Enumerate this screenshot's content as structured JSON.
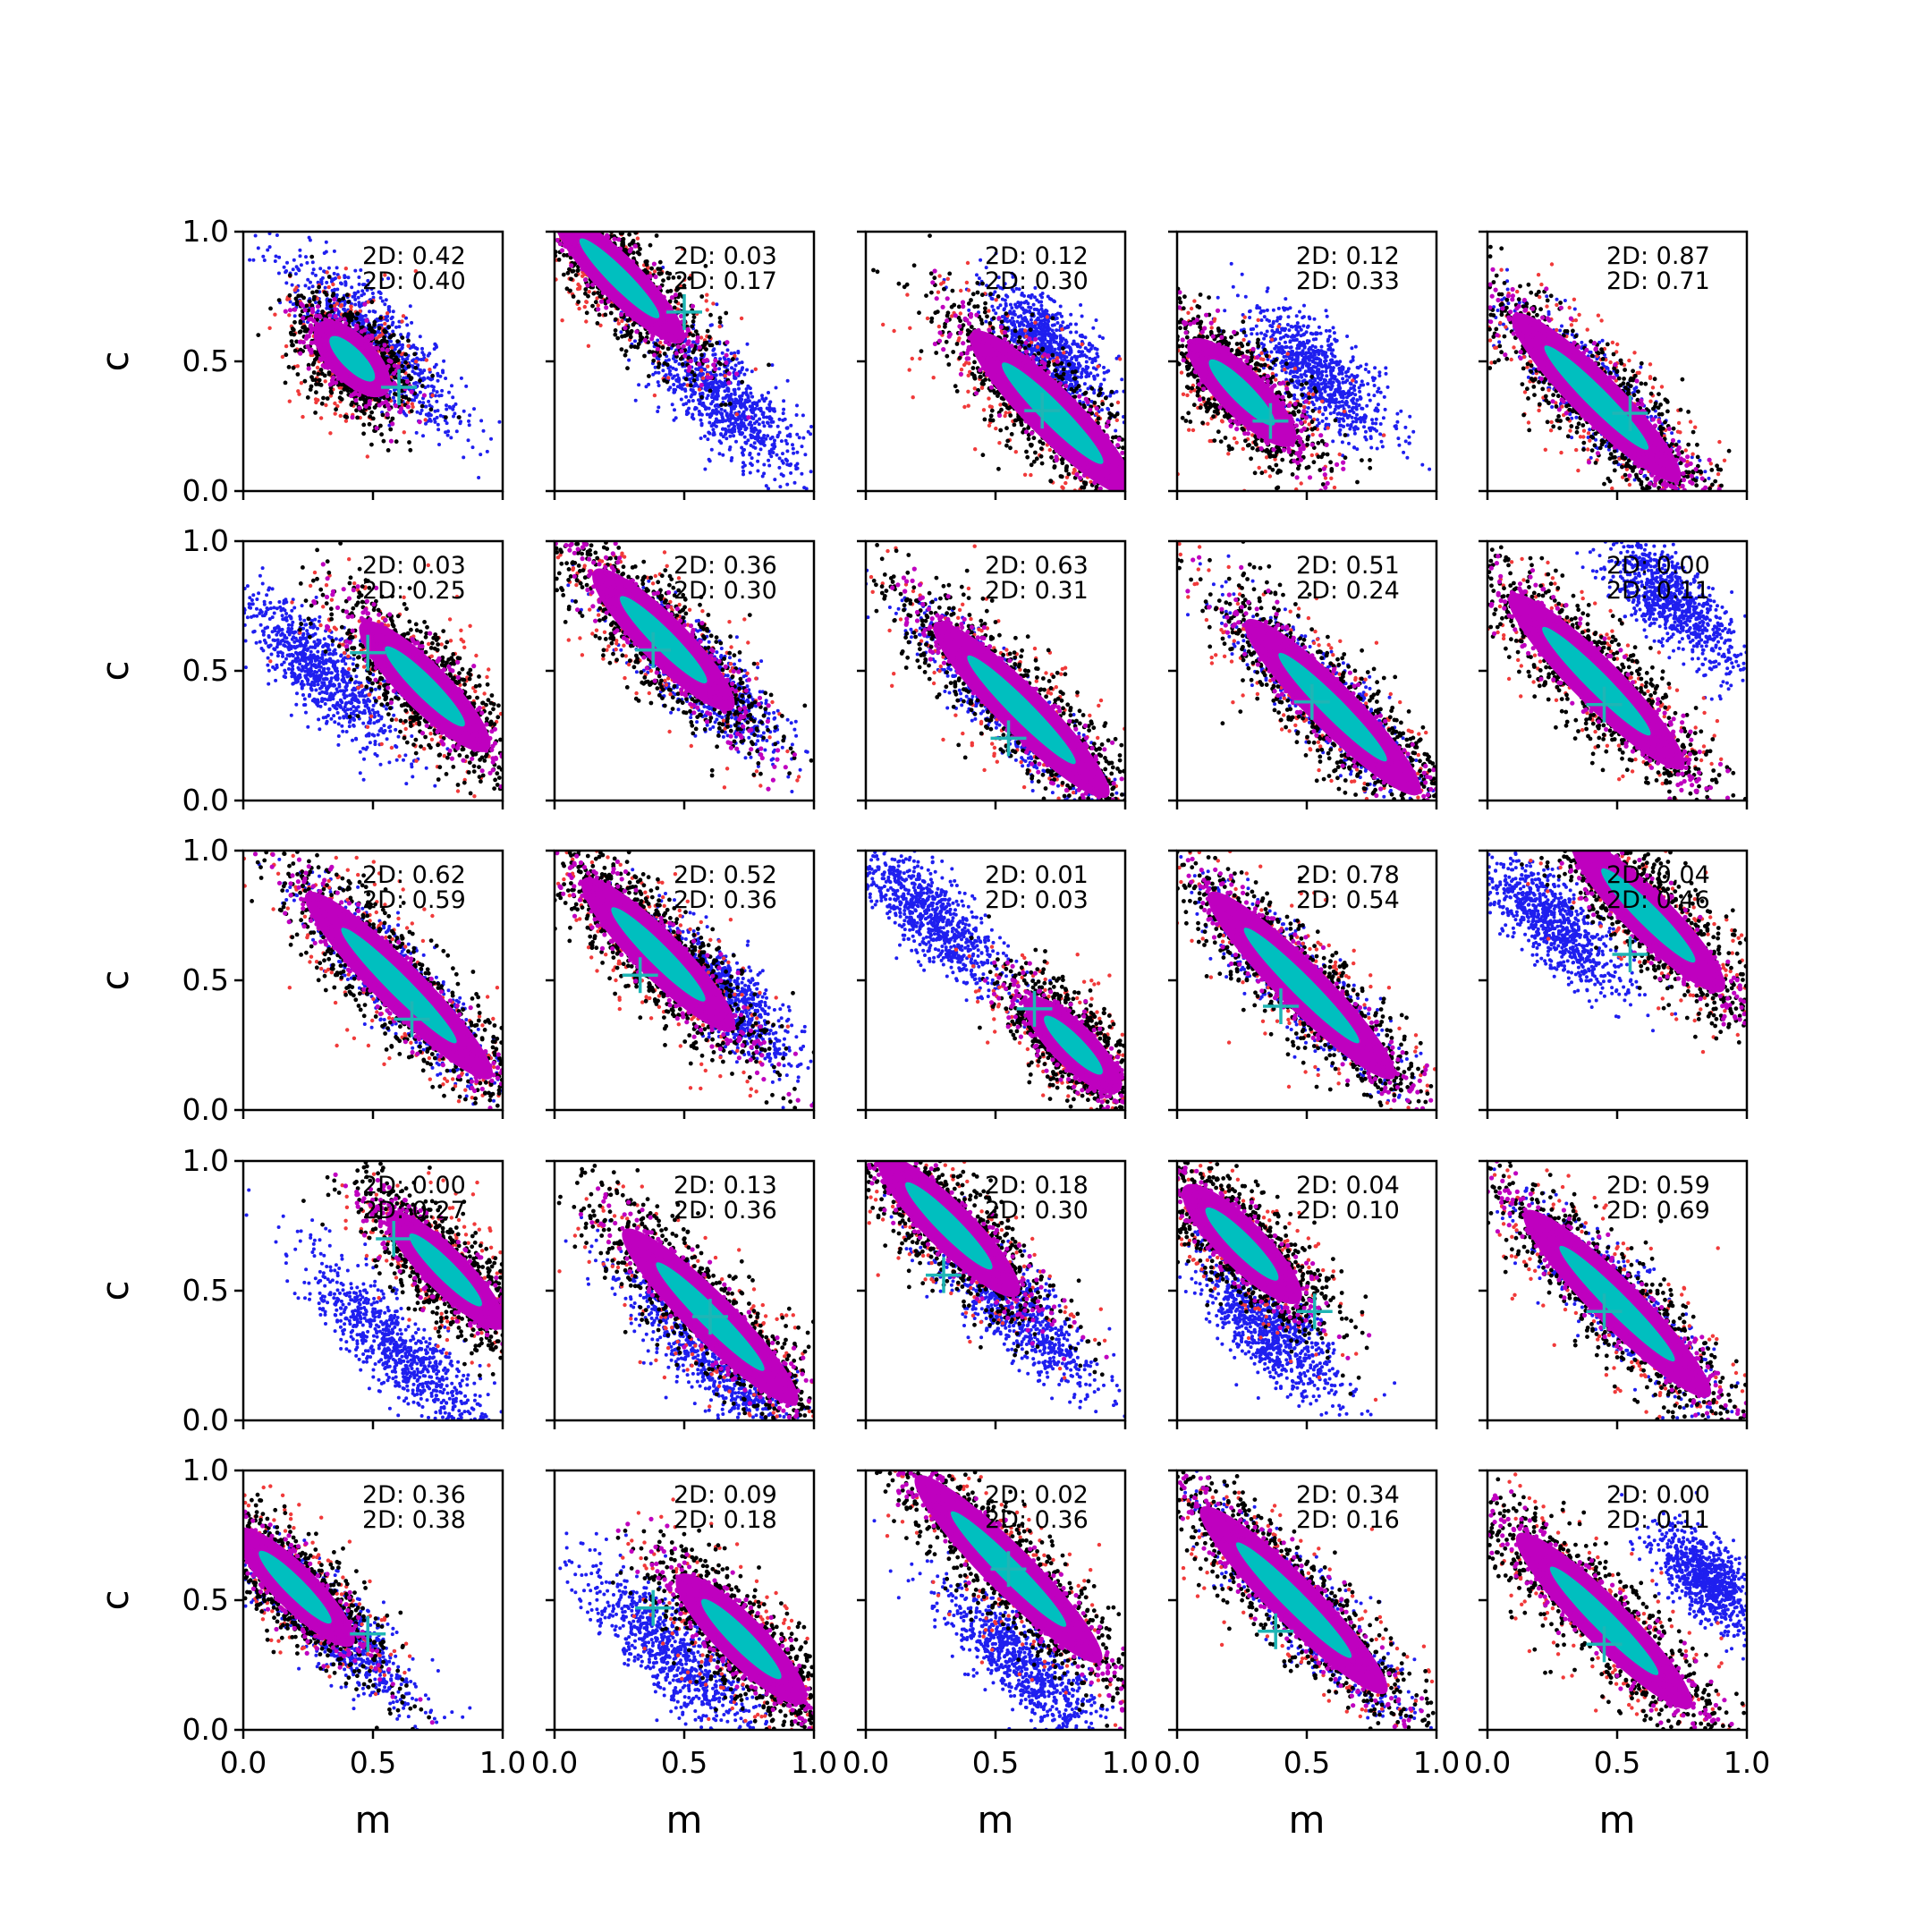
{
  "chart_data": {
    "type": "scatter",
    "layout": "5x5 grid of subplots",
    "shared_axes": {
      "xlabel": "m",
      "ylabel": "c",
      "xlim": [
        0.0,
        1.0
      ],
      "ylim": [
        0.0,
        1.0
      ],
      "xticks": [
        "0.0",
        "0.5",
        "1.0"
      ],
      "yticks": [
        "0.0",
        "0.5",
        "1.0"
      ]
    },
    "colors": {
      "red": "#f03a3a",
      "black": "#000000",
      "magenta": "#bf00bf",
      "cyan": "#00bfbf",
      "blue": "#1f1fef",
      "marker": "#1fb5b5"
    },
    "panels": [
      {
        "row": 0,
        "col": 0,
        "annot": [
          "2D: 0.42",
          "2D: 0.40"
        ],
        "main": {
          "m": 0.42,
          "c": 0.51,
          "s": 0.3,
          "w": 0.065
        },
        "blue": {
          "m": 0.5,
          "c": 0.58,
          "s": 0.55,
          "w": 0.07
        },
        "marker": {
          "m": 0.6,
          "c": 0.4
        }
      },
      {
        "row": 0,
        "col": 1,
        "annot": [
          "2D: 0.03",
          "2D: 0.17"
        ],
        "main": {
          "m": 0.25,
          "c": 0.82,
          "s": 0.55,
          "w": 0.06
        },
        "blue": {
          "m": 0.65,
          "c": 0.35,
          "s": 0.45,
          "w": 0.075
        },
        "marker": {
          "m": 0.5,
          "c": 0.69
        }
      },
      {
        "row": 0,
        "col": 2,
        "annot": [
          "2D: 0.12",
          "2D: 0.30"
        ],
        "main": {
          "m": 0.72,
          "c": 0.3,
          "s": 0.7,
          "w": 0.07
        },
        "blue": {
          "m": 0.7,
          "c": 0.55,
          "s": 0.35,
          "w": 0.07
        },
        "marker": {
          "m": 0.68,
          "c": 0.31
        }
      },
      {
        "row": 0,
        "col": 3,
        "annot": [
          "2D: 0.12",
          "2D: 0.33"
        ],
        "main": {
          "m": 0.25,
          "c": 0.38,
          "s": 0.45,
          "w": 0.065
        },
        "blue": {
          "m": 0.55,
          "c": 0.45,
          "s": 0.4,
          "w": 0.07
        },
        "marker": {
          "m": 0.36,
          "c": 0.27
        }
      },
      {
        "row": 0,
        "col": 4,
        "annot": [
          "2D: 0.87",
          "2D: 0.71"
        ],
        "main": {
          "m": 0.42,
          "c": 0.36,
          "s": 0.72,
          "w": 0.065
        },
        "blue": {
          "m": 0.42,
          "c": 0.36,
          "s": 0.5,
          "w": 0.06
        },
        "marker": {
          "m": 0.55,
          "c": 0.3
        }
      },
      {
        "row": 1,
        "col": 0,
        "annot": [
          "2D: 0.03",
          "2D: 0.25"
        ],
        "main": {
          "m": 0.7,
          "c": 0.44,
          "s": 0.55,
          "w": 0.065
        },
        "blue": {
          "m": 0.3,
          "c": 0.5,
          "s": 0.45,
          "w": 0.065
        },
        "marker": {
          "m": 0.48,
          "c": 0.57
        }
      },
      {
        "row": 1,
        "col": 1,
        "annot": [
          "2D: 0.36",
          "2D: 0.30"
        ],
        "main": {
          "m": 0.42,
          "c": 0.62,
          "s": 0.6,
          "w": 0.065
        },
        "blue": {
          "m": 0.55,
          "c": 0.5,
          "s": 0.5,
          "w": 0.065
        },
        "marker": {
          "m": 0.38,
          "c": 0.58
        }
      },
      {
        "row": 1,
        "col": 2,
        "annot": [
          "2D: 0.63",
          "2D: 0.31"
        ],
        "main": {
          "m": 0.6,
          "c": 0.35,
          "s": 0.75,
          "w": 0.065
        },
        "blue": {
          "m": 0.55,
          "c": 0.36,
          "s": 0.6,
          "w": 0.06
        },
        "marker": {
          "m": 0.55,
          "c": 0.24
        }
      },
      {
        "row": 1,
        "col": 3,
        "annot": [
          "2D: 0.51",
          "2D: 0.24"
        ],
        "main": {
          "m": 0.6,
          "c": 0.36,
          "s": 0.75,
          "w": 0.065
        },
        "blue": {
          "m": 0.6,
          "c": 0.36,
          "s": 0.6,
          "w": 0.06
        },
        "marker": {
          "m": 0.52,
          "c": 0.38
        }
      },
      {
        "row": 1,
        "col": 4,
        "annot": [
          "2D: 0.00",
          "2D: 0.11"
        ],
        "main": {
          "m": 0.42,
          "c": 0.46,
          "s": 0.75,
          "w": 0.065
        },
        "blue": {
          "m": 0.72,
          "c": 0.76,
          "s": 0.4,
          "w": 0.065
        },
        "marker": {
          "m": 0.45,
          "c": 0.37
        }
      },
      {
        "row": 2,
        "col": 0,
        "annot": [
          "2D: 0.62",
          "2D: 0.59"
        ],
        "main": {
          "m": 0.6,
          "c": 0.48,
          "s": 0.8,
          "w": 0.065
        },
        "blue": {
          "m": 0.6,
          "c": 0.48,
          "s": 0.55,
          "w": 0.06
        },
        "marker": {
          "m": 0.65,
          "c": 0.35
        }
      },
      {
        "row": 2,
        "col": 1,
        "annot": [
          "2D: 0.52",
          "2D: 0.36"
        ],
        "main": {
          "m": 0.4,
          "c": 0.6,
          "s": 0.65,
          "w": 0.065
        },
        "blue": {
          "m": 0.65,
          "c": 0.45,
          "s": 0.45,
          "w": 0.065
        },
        "marker": {
          "m": 0.33,
          "c": 0.52
        }
      },
      {
        "row": 2,
        "col": 2,
        "annot": [
          "2D: 0.01",
          "2D: 0.03"
        ],
        "main": {
          "m": 0.8,
          "c": 0.25,
          "s": 0.4,
          "w": 0.06
        },
        "blue": {
          "m": 0.25,
          "c": 0.75,
          "s": 0.45,
          "w": 0.065
        },
        "marker": {
          "m": 0.65,
          "c": 0.39
        }
      },
      {
        "row": 2,
        "col": 3,
        "annot": [
          "2D: 0.78",
          "2D: 0.54"
        ],
        "main": {
          "m": 0.48,
          "c": 0.48,
          "s": 0.8,
          "w": 0.065
        },
        "blue": {
          "m": 0.48,
          "c": 0.48,
          "s": 0.55,
          "w": 0.06
        },
        "marker": {
          "m": 0.4,
          "c": 0.4
        }
      },
      {
        "row": 2,
        "col": 4,
        "annot": [
          "2D: 0.04",
          "2D: 0.46"
        ],
        "main": {
          "m": 0.62,
          "c": 0.75,
          "s": 0.65,
          "w": 0.065
        },
        "blue": {
          "m": 0.25,
          "c": 0.72,
          "s": 0.45,
          "w": 0.065
        },
        "marker": {
          "m": 0.55,
          "c": 0.6
        }
      },
      {
        "row": 3,
        "col": 0,
        "annot": [
          "2D: 0.00",
          "2D: 0.27"
        ],
        "main": {
          "m": 0.78,
          "c": 0.58,
          "s": 0.5,
          "w": 0.06
        },
        "blue": {
          "m": 0.6,
          "c": 0.27,
          "s": 0.6,
          "w": 0.065
        },
        "marker": {
          "m": 0.58,
          "c": 0.7
        }
      },
      {
        "row": 3,
        "col": 1,
        "annot": [
          "2D: 0.13",
          "2D: 0.36"
        ],
        "main": {
          "m": 0.6,
          "c": 0.4,
          "s": 0.75,
          "w": 0.065
        },
        "blue": {
          "m": 0.6,
          "c": 0.25,
          "s": 0.6,
          "w": 0.065
        },
        "marker": {
          "m": 0.6,
          "c": 0.4
        }
      },
      {
        "row": 3,
        "col": 2,
        "annot": [
          "2D: 0.18",
          "2D: 0.30"
        ],
        "main": {
          "m": 0.32,
          "c": 0.75,
          "s": 0.6,
          "w": 0.065
        },
        "blue": {
          "m": 0.55,
          "c": 0.45,
          "s": 0.55,
          "w": 0.065
        },
        "marker": {
          "m": 0.3,
          "c": 0.56
        }
      },
      {
        "row": 3,
        "col": 3,
        "annot": [
          "2D: 0.04",
          "2D: 0.10"
        ],
        "main": {
          "m": 0.25,
          "c": 0.68,
          "s": 0.5,
          "w": 0.065
        },
        "blue": {
          "m": 0.35,
          "c": 0.35,
          "s": 0.45,
          "w": 0.065
        },
        "marker": {
          "m": 0.53,
          "c": 0.42
        }
      },
      {
        "row": 3,
        "col": 4,
        "annot": [
          "2D: 0.59",
          "2D: 0.69"
        ],
        "main": {
          "m": 0.5,
          "c": 0.45,
          "s": 0.8,
          "w": 0.065
        },
        "blue": {
          "m": 0.5,
          "c": 0.45,
          "s": 0.55,
          "w": 0.06
        },
        "marker": {
          "m": 0.45,
          "c": 0.42
        }
      },
      {
        "row": 4,
        "col": 0,
        "annot": [
          "2D: 0.36",
          "2D: 0.38"
        ],
        "main": {
          "m": 0.2,
          "c": 0.55,
          "s": 0.5,
          "w": 0.06
        },
        "blue": {
          "m": 0.35,
          "c": 0.4,
          "s": 0.5,
          "w": 0.065
        },
        "marker": {
          "m": 0.48,
          "c": 0.37
        }
      },
      {
        "row": 4,
        "col": 1,
        "annot": [
          "2D: 0.09",
          "2D: 0.18"
        ],
        "main": {
          "m": 0.72,
          "c": 0.35,
          "s": 0.55,
          "w": 0.065
        },
        "blue": {
          "m": 0.45,
          "c": 0.3,
          "s": 0.55,
          "w": 0.07
        },
        "marker": {
          "m": 0.38,
          "c": 0.47
        }
      },
      {
        "row": 4,
        "col": 2,
        "annot": [
          "2D: 0.02",
          "2D: 0.36"
        ],
        "main": {
          "m": 0.55,
          "c": 0.62,
          "s": 0.8,
          "w": 0.065
        },
        "blue": {
          "m": 0.6,
          "c": 0.25,
          "s": 0.55,
          "w": 0.065
        },
        "marker": {
          "m": 0.55,
          "c": 0.62
        }
      },
      {
        "row": 4,
        "col": 3,
        "annot": [
          "2D: 0.34",
          "2D: 0.16"
        ],
        "main": {
          "m": 0.45,
          "c": 0.5,
          "s": 0.8,
          "w": 0.065
        },
        "blue": {
          "m": 0.5,
          "c": 0.45,
          "s": 0.6,
          "w": 0.06
        },
        "marker": {
          "m": 0.38,
          "c": 0.38
        }
      },
      {
        "row": 4,
        "col": 4,
        "annot": [
          "2D: 0.00",
          "2D: 0.11"
        ],
        "main": {
          "m": 0.45,
          "c": 0.42,
          "s": 0.75,
          "w": 0.065
        },
        "blue": {
          "m": 0.85,
          "c": 0.58,
          "s": 0.3,
          "w": 0.06
        },
        "marker": {
          "m": 0.45,
          "c": 0.33
        }
      }
    ]
  }
}
